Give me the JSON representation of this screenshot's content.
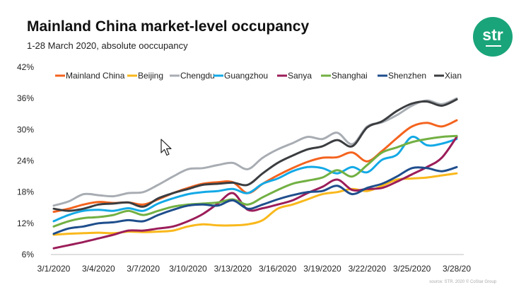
{
  "header": {
    "title": "Mainland China market-level occupancy",
    "subtitle": "1-28 March 2020, absolute ooccupancy"
  },
  "logo": {
    "text": "str",
    "color": "#19a479"
  },
  "source_text": "source: STR. 2020 © CoStar Group",
  "cursor": {
    "icon": "mouse-pointer-icon"
  },
  "chart_data": {
    "type": "line",
    "title": "Mainland China market-level occupancy",
    "subtitle": "1-28 March 2020, absolute ooccupancy",
    "xlabel": "",
    "ylabel": "",
    "ylim": [
      6,
      42
    ],
    "y_ticks": [
      "6%",
      "12%",
      "18%",
      "24%",
      "30%",
      "36%",
      "42%"
    ],
    "y_tick_values": [
      6,
      12,
      18,
      24,
      30,
      36,
      42
    ],
    "x_tick_labels": [
      "3/1/2020",
      "3/4/2020",
      "3/7/2020",
      "3/10/2020",
      "3/13/2020",
      "3/16/2020",
      "3/19/2020",
      "3/22/2020",
      "3/25/2020",
      "3/28/20"
    ],
    "x_tick_days": [
      1,
      4,
      7,
      10,
      13,
      16,
      19,
      22,
      25,
      28
    ],
    "x": [
      1,
      2,
      3,
      4,
      5,
      6,
      7,
      8,
      9,
      10,
      11,
      12,
      13,
      14,
      15,
      16,
      17,
      18,
      19,
      20,
      21,
      22,
      23,
      24,
      25,
      26,
      27,
      28
    ],
    "grid": false,
    "legend_position": "top",
    "series": [
      {
        "name": "Mainland China",
        "color": "#f4631e",
        "values": [
          14.2,
          14.8,
          15.6,
          16.1,
          15.9,
          16.0,
          15.6,
          16.6,
          17.8,
          18.8,
          19.6,
          19.9,
          19.9,
          17.8,
          19.6,
          21.2,
          22.6,
          23.8,
          24.6,
          24.7,
          25.6,
          23.9,
          25.9,
          28.4,
          30.6,
          31.3,
          30.6,
          31.8
        ]
      },
      {
        "name": "Beijing",
        "color": "#f9b81c",
        "values": [
          9.8,
          10.0,
          10.1,
          10.2,
          10.1,
          10.4,
          10.3,
          10.4,
          10.6,
          11.4,
          11.8,
          11.6,
          11.6,
          11.8,
          12.6,
          14.8,
          15.6,
          16.6,
          17.6,
          18.0,
          18.6,
          18.2,
          19.2,
          20.4,
          20.6,
          20.8,
          21.2,
          21.6
        ]
      },
      {
        "name": "Chengdu",
        "color": "#a8adb3",
        "values": [
          15.4,
          16.2,
          17.6,
          17.4,
          17.2,
          17.8,
          18.0,
          19.4,
          21.0,
          22.4,
          22.6,
          23.2,
          23.6,
          22.4,
          24.6,
          26.2,
          27.4,
          28.6,
          28.2,
          29.4,
          27.2,
          30.6,
          31.4,
          32.8,
          34.6,
          35.6,
          34.9,
          36.0
        ]
      },
      {
        "name": "Guangzhou",
        "color": "#13a9e6",
        "values": [
          12.4,
          13.6,
          14.4,
          14.6,
          14.4,
          14.9,
          14.4,
          15.8,
          16.8,
          17.6,
          18.0,
          18.2,
          18.6,
          17.8,
          19.6,
          20.6,
          22.0,
          22.8,
          22.6,
          21.6,
          22.8,
          21.8,
          24.2,
          25.2,
          28.6,
          27.0,
          27.3,
          28.2
        ]
      },
      {
        "name": "Sanya",
        "color": "#9b1d59",
        "values": [
          7.2,
          7.8,
          8.4,
          9.1,
          9.8,
          10.6,
          10.6,
          11.0,
          11.4,
          12.4,
          13.8,
          15.8,
          17.8,
          14.6,
          14.9,
          15.6,
          16.4,
          17.8,
          19.0,
          20.4,
          18.4,
          18.6,
          18.8,
          20.0,
          21.4,
          22.8,
          24.6,
          28.6
        ]
      },
      {
        "name": "Shanghai",
        "color": "#72b043",
        "values": [
          11.4,
          12.4,
          13.0,
          13.2,
          13.6,
          14.4,
          13.6,
          14.4,
          15.2,
          15.6,
          15.8,
          16.0,
          16.6,
          15.6,
          17.0,
          18.4,
          19.6,
          20.2,
          20.8,
          22.2,
          21.0,
          23.2,
          25.6,
          26.6,
          27.6,
          28.2,
          28.6,
          28.8
        ]
      },
      {
        "name": "Shenzhen",
        "color": "#1f4e8c",
        "values": [
          10.0,
          11.0,
          11.4,
          12.0,
          12.2,
          12.6,
          12.4,
          13.6,
          14.6,
          15.4,
          15.6,
          15.4,
          16.4,
          14.8,
          15.6,
          16.6,
          17.4,
          18.0,
          18.2,
          19.2,
          17.6,
          18.8,
          19.6,
          21.0,
          22.6,
          22.6,
          22.0,
          22.8
        ]
      },
      {
        "name": "Xian",
        "color": "#3b3d40",
        "values": [
          14.8,
          14.4,
          14.8,
          15.6,
          15.8,
          16.0,
          15.2,
          16.8,
          17.8,
          18.6,
          19.4,
          19.6,
          19.8,
          19.4,
          21.6,
          23.6,
          25.0,
          26.2,
          26.8,
          28.0,
          26.8,
          30.4,
          31.6,
          33.6,
          35.0,
          35.4,
          34.6,
          35.8
        ]
      }
    ]
  }
}
